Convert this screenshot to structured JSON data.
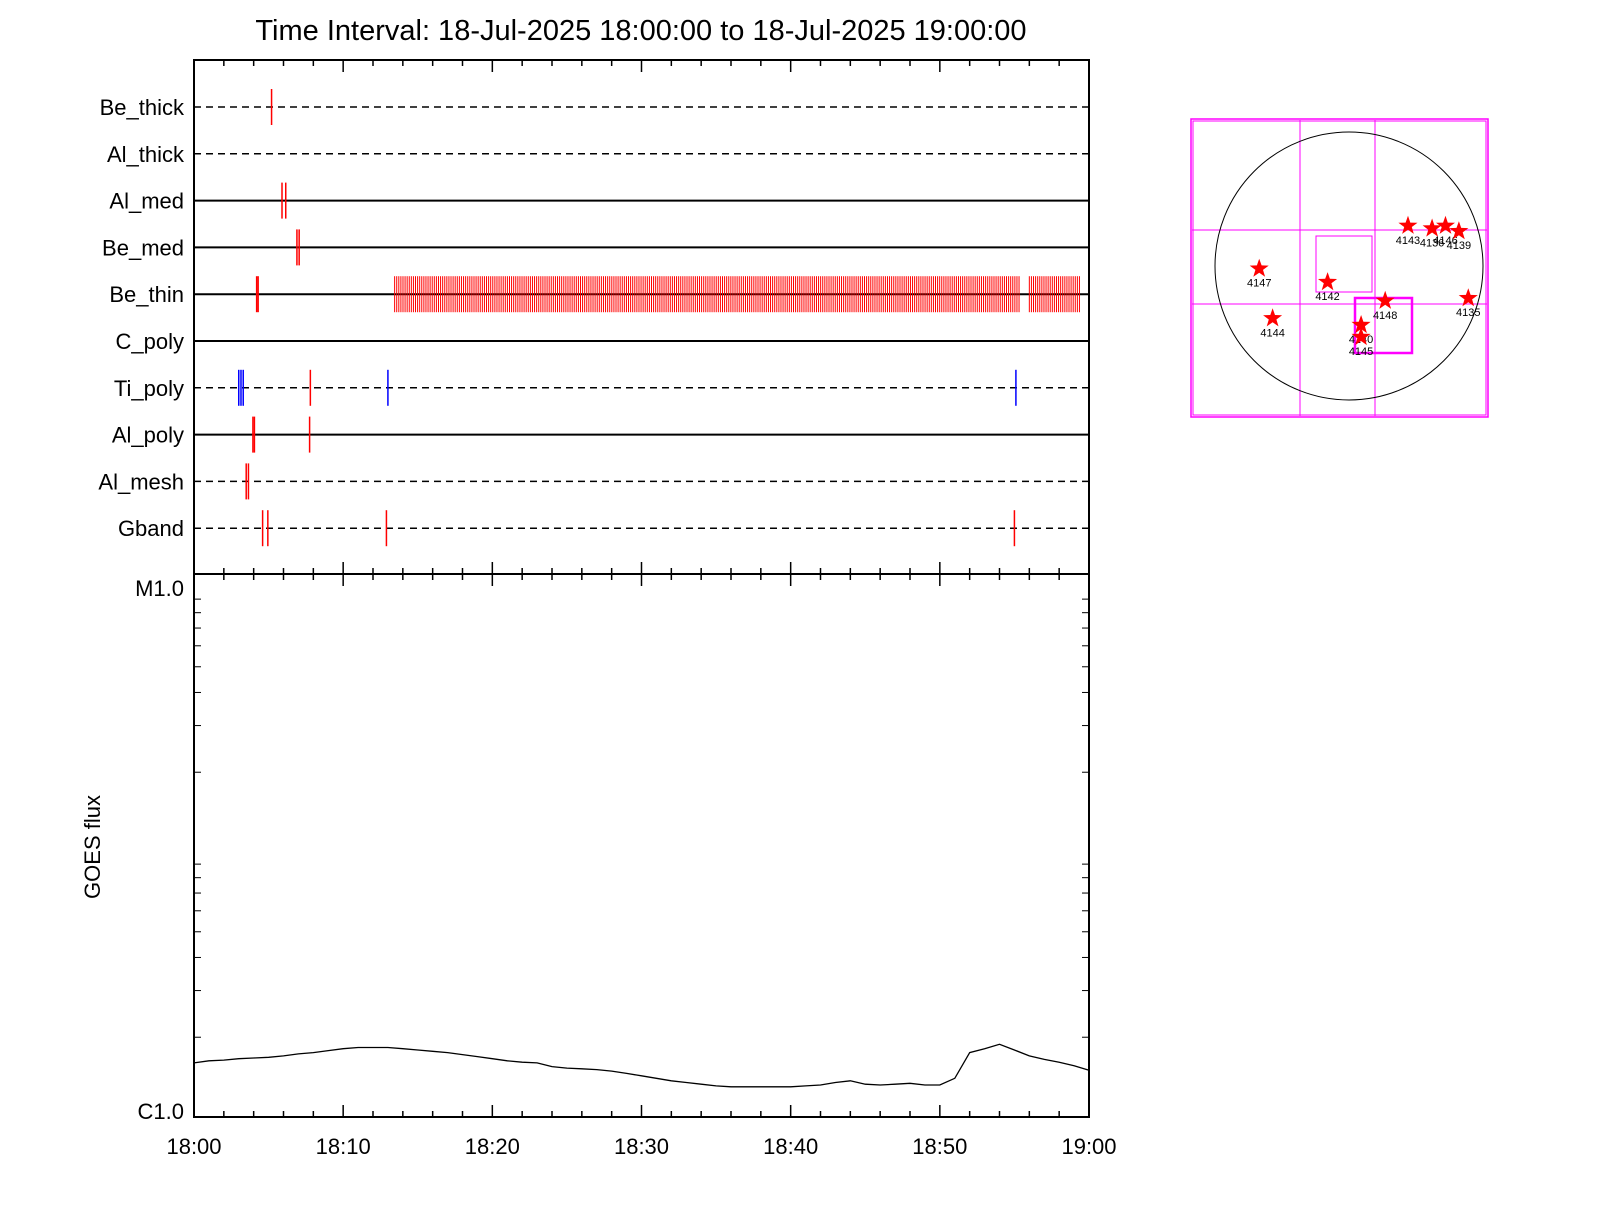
{
  "chart_data": [
    {
      "type": "event-timeline",
      "title": "Time Interval: 18-Jul-2025 18:00:00 to 18-Jul-2025 19:00:00",
      "x_range": [
        "18:00",
        "19:00"
      ],
      "colors": {
        "red": "#ff0000",
        "blue": "#0000ff",
        "line": "#000000"
      },
      "channels": [
        {
          "name": "Be_thick",
          "style": "dashed",
          "events": [
            {
              "t": 5.2,
              "color": "red"
            }
          ]
        },
        {
          "name": "Al_thick",
          "style": "dashed",
          "events": []
        },
        {
          "name": "Al_med",
          "style": "solid",
          "events": [
            {
              "t": 5.9,
              "color": "red"
            },
            {
              "t": 6.15,
              "color": "red"
            }
          ]
        },
        {
          "name": "Be_med",
          "style": "solid",
          "events": [
            {
              "t": 6.9,
              "color": "red"
            },
            {
              "t": 7.05,
              "color": "red"
            }
          ]
        },
        {
          "name": "Be_thin",
          "style": "solid",
          "events": [
            {
              "t": 4.2,
              "color": "red"
            },
            {
              "t": 4.3,
              "color": "red"
            }
          ],
          "bursts": [
            {
              "start": 13.45,
              "end": 55.4,
              "step": 0.14,
              "color": "red"
            },
            {
              "start": 56.0,
              "end": 59.4,
              "step": 0.14,
              "color": "red"
            }
          ]
        },
        {
          "name": "C_poly",
          "style": "solid",
          "events": []
        },
        {
          "name": "Ti_poly",
          "style": "dashed",
          "events": [
            {
              "t": 3.0,
              "color": "blue"
            },
            {
              "t": 3.15,
              "color": "blue"
            },
            {
              "t": 3.3,
              "color": "blue"
            },
            {
              "t": 7.8,
              "color": "red"
            },
            {
              "t": 13.0,
              "color": "blue"
            },
            {
              "t": 55.1,
              "color": "blue"
            }
          ]
        },
        {
          "name": "Al_poly",
          "style": "solid",
          "events": [
            {
              "t": 3.95,
              "color": "red"
            },
            {
              "t": 4.05,
              "color": "red"
            },
            {
              "t": 7.75,
              "color": "red"
            }
          ]
        },
        {
          "name": "Al_mesh",
          "style": "dashed",
          "events": [
            {
              "t": 3.5,
              "color": "red"
            },
            {
              "t": 3.65,
              "color": "red"
            }
          ]
        },
        {
          "name": "Gband",
          "style": "dashed",
          "events": [
            {
              "t": 4.6,
              "color": "red"
            },
            {
              "t": 4.95,
              "color": "red"
            },
            {
              "t": 12.9,
              "color": "red"
            },
            {
              "t": 55.0,
              "color": "red"
            }
          ]
        }
      ]
    },
    {
      "type": "line",
      "ylabel": "GOES flux",
      "y_ticks": [
        "M1.0",
        "C1.0"
      ],
      "y_scale": "log",
      "x_ticks": [
        "18:00",
        "18:10",
        "18:20",
        "18:30",
        "18:40",
        "18:50",
        "19:00"
      ],
      "x": [
        0,
        1,
        2,
        3,
        4,
        5,
        6,
        7,
        8,
        9,
        10,
        11,
        12,
        13,
        14,
        15,
        16,
        17,
        18,
        19,
        20,
        21,
        22,
        23,
        24,
        25,
        26,
        27,
        28,
        29,
        30,
        31,
        32,
        33,
        34,
        35,
        36,
        37,
        38,
        39,
        40,
        41,
        42,
        43,
        44,
        45,
        46,
        47,
        48,
        49,
        50,
        51,
        52,
        53,
        54,
        55,
        56,
        57,
        58,
        59,
        60
      ],
      "series": [
        {
          "values": [
            1.6,
            1.63,
            1.64,
            1.66,
            1.67,
            1.68,
            1.7,
            1.73,
            1.75,
            1.78,
            1.81,
            1.83,
            1.83,
            1.83,
            1.81,
            1.79,
            1.77,
            1.75,
            1.72,
            1.69,
            1.66,
            1.63,
            1.61,
            1.6,
            1.55,
            1.53,
            1.52,
            1.51,
            1.49,
            1.46,
            1.43,
            1.4,
            1.37,
            1.35,
            1.33,
            1.31,
            1.3,
            1.3,
            1.3,
            1.3,
            1.3,
            1.31,
            1.32,
            1.35,
            1.37,
            1.33,
            1.32,
            1.33,
            1.34,
            1.32,
            1.32,
            1.4,
            1.75,
            1.81,
            1.88,
            1.79,
            1.7,
            1.65,
            1.61,
            1.56,
            1.5
          ]
        }
      ]
    },
    {
      "type": "solar-map",
      "regions": [
        {
          "label": "4143",
          "x": 0.44,
          "y": 0.3
        },
        {
          "label": "4136",
          "x": 0.62,
          "y": 0.28
        },
        {
          "label": "4146",
          "x": 0.72,
          "y": 0.3
        },
        {
          "label": "4139",
          "x": 0.82,
          "y": 0.26
        },
        {
          "label": "4147",
          "x": -0.67,
          "y": -0.02
        },
        {
          "label": "4142",
          "x": -0.16,
          "y": -0.12
        },
        {
          "label": "4148",
          "x": 0.27,
          "y": -0.26
        },
        {
          "label": "4135",
          "x": 0.89,
          "y": -0.24
        },
        {
          "label": "4144",
          "x": -0.57,
          "y": -0.39
        },
        {
          "label": "4140",
          "x": 0.09,
          "y": -0.44
        },
        {
          "label": "4145",
          "x": 0.09,
          "y": -0.53
        }
      ],
      "colors": {
        "grid": "#ff00ff",
        "star": "#ff0000",
        "limb": "#000000"
      }
    }
  ]
}
